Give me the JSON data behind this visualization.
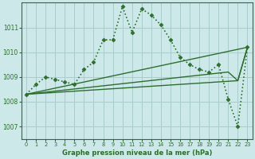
{
  "title": "Graphe pression niveau de la mer (hPa)",
  "background_color": "#cce8e8",
  "grid_color": "#aacccc",
  "line_color": "#2d6e2d",
  "xlim": [
    -0.5,
    23.5
  ],
  "ylim": [
    1006.5,
    1012.0
  ],
  "yticks": [
    1007,
    1008,
    1009,
    1010,
    1011
  ],
  "xticks": [
    0,
    1,
    2,
    3,
    4,
    5,
    6,
    7,
    8,
    9,
    10,
    11,
    12,
    13,
    14,
    15,
    16,
    17,
    18,
    19,
    20,
    21,
    22,
    23
  ],
  "main_x": [
    0,
    1,
    2,
    3,
    4,
    5,
    6,
    7,
    8,
    9,
    10,
    11,
    12,
    13,
    14,
    15,
    16,
    17,
    18,
    19,
    20,
    21,
    22,
    23
  ],
  "main_y": [
    1008.3,
    1008.7,
    1009.0,
    1008.9,
    1008.8,
    1008.7,
    1009.3,
    1009.6,
    1010.5,
    1010.5,
    1011.85,
    1010.8,
    1011.75,
    1011.5,
    1011.1,
    1010.5,
    1009.8,
    1009.5,
    1009.3,
    1009.2,
    1009.5,
    1008.1,
    1007.0,
    1010.2
  ],
  "fan_lines": [
    {
      "x": [
        0,
        23
      ],
      "y": [
        1008.3,
        1010.2
      ]
    },
    {
      "x": [
        0,
        22,
        23
      ],
      "y": [
        1008.3,
        1008.85,
        1010.2
      ]
    },
    {
      "x": [
        0,
        21,
        22,
        23
      ],
      "y": [
        1008.3,
        1009.2,
        1008.85,
        1010.2
      ]
    }
  ]
}
